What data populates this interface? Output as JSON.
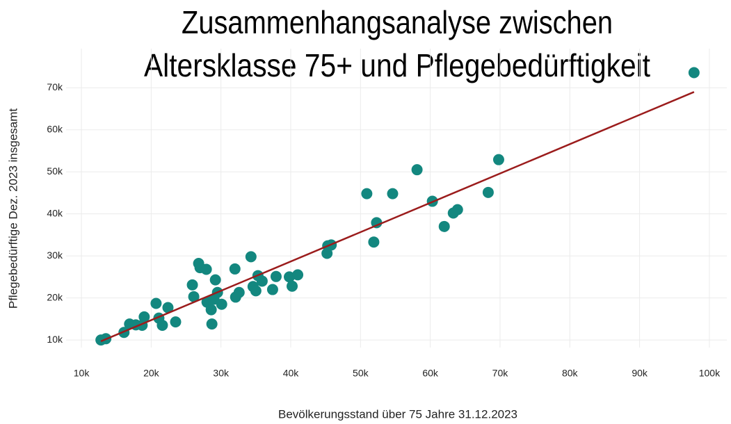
{
  "chart_data": {
    "type": "scatter",
    "title": [
      "Zusammenhangsanalyse zwischen",
      "Altersklasse 75+ und Pflegebedürftigkeit"
    ],
    "x_label": "Bevölkerungsstand über 75 Jahre 31.12.2023",
    "y_label": "Pflegebedürftige Dez. 2023 insgesamt",
    "xlim": [
      7800,
      102500
    ],
    "ylim": [
      8200,
      79300
    ],
    "xticks": [
      {
        "value": 10000,
        "label": "10k"
      },
      {
        "value": 20000,
        "label": "20k"
      },
      {
        "value": 30000,
        "label": "30k"
      },
      {
        "value": 40000,
        "label": "40k"
      },
      {
        "value": 50000,
        "label": "50k"
      },
      {
        "value": 60000,
        "label": "60k"
      },
      {
        "value": 70000,
        "label": "70k"
      },
      {
        "value": 80000,
        "label": "80k"
      },
      {
        "value": 90000,
        "label": "90k"
      },
      {
        "value": 100000,
        "label": "100k"
      }
    ],
    "yticks": [
      {
        "value": 10000,
        "label": "10k"
      },
      {
        "value": 20000,
        "label": "20k"
      },
      {
        "value": 30000,
        "label": "30k"
      },
      {
        "value": 40000,
        "label": "40k"
      },
      {
        "value": 50000,
        "label": "50k"
      },
      {
        "value": 60000,
        "label": "60k"
      },
      {
        "value": 70000,
        "label": "70k"
      }
    ],
    "grid": true,
    "color": "#13877f",
    "x": [
      12800,
      13500,
      16100,
      16900,
      17800,
      18700,
      19000,
      20700,
      21100,
      21600,
      22400,
      23500,
      25900,
      26100,
      26800,
      27000,
      27900,
      28000,
      28600,
      28700,
      29200,
      29500,
      29000,
      30100,
      32000,
      32100,
      32600,
      34300,
      34600,
      35000,
      35300,
      35900,
      37400,
      37900,
      39800,
      40200,
      41000,
      45200,
      45300,
      45800,
      50900,
      51900,
      52300,
      54600,
      58100,
      60300,
      62000,
      63300,
      63900,
      68300,
      69800,
      97800
    ],
    "values": [
      10000,
      10300,
      11800,
      13800,
      13600,
      13500,
      15500,
      18700,
      15200,
      13500,
      17700,
      14300,
      23100,
      20300,
      28200,
      27200,
      26800,
      19000,
      17200,
      13800,
      24300,
      21300,
      19700,
      18500,
      26900,
      20200,
      21300,
      29800,
      22700,
      21700,
      25300,
      24000,
      22000,
      25100,
      25000,
      22800,
      25500,
      30600,
      32400,
      32600,
      44800,
      33300,
      37900,
      44800,
      50500,
      43000,
      37000,
      40200,
      41000,
      45100,
      52900,
      73600
    ],
    "trend": {
      "color": "#9b1c1c",
      "x": [
        12800,
        97800
      ],
      "values": [
        9700,
        69000
      ]
    }
  }
}
